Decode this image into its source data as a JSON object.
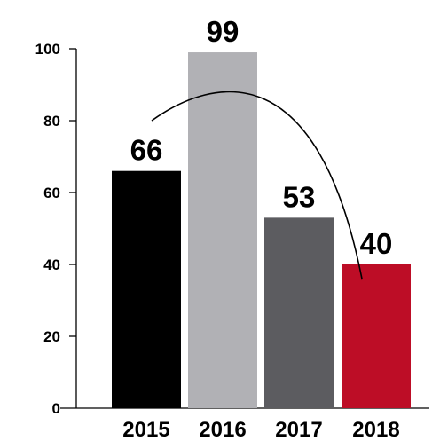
{
  "chart_data": {
    "type": "bar",
    "categories": [
      "2015",
      "2016",
      "2017",
      "2018"
    ],
    "values": [
      66,
      99,
      53,
      40
    ],
    "data_labels": [
      "66",
      "99",
      "53",
      "40"
    ],
    "colors": [
      "#000000",
      "#b1b1b5",
      "#5c5c60",
      "#bd0d26"
    ],
    "yticks": [
      0,
      20,
      40,
      60,
      80,
      100
    ],
    "ylim": [
      0,
      100
    ],
    "title": "",
    "xlabel": "",
    "ylabel": "",
    "grid": false,
    "trend_curve": {
      "type": "arc",
      "color": "#000000",
      "from": {
        "category": "2015",
        "value": 80
      },
      "peak": {
        "between": [
          "2016",
          "2017"
        ],
        "value": 89
      },
      "to": {
        "category": "2018",
        "value": 36
      }
    }
  }
}
